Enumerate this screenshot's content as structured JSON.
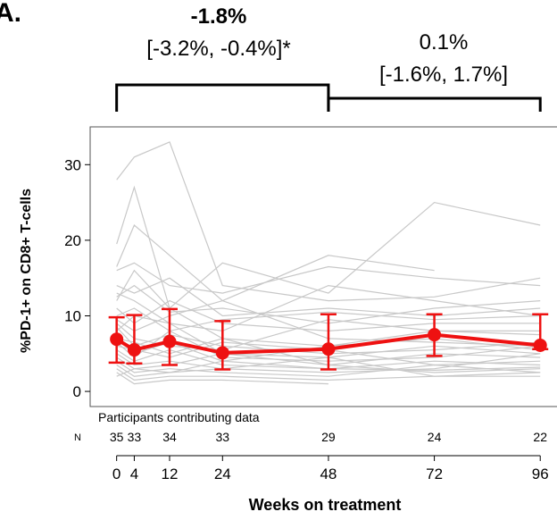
{
  "panel_label": "A.",
  "annotations": {
    "left_bracket": {
      "estimate": "-1.8%",
      "ci": "[-3.2%, -0.4%]*",
      "x_from": 0,
      "x_to": 48
    },
    "right_bracket": {
      "estimate": "0.1%",
      "ci": "[-1.6%, 1.7%]",
      "x_from": 48,
      "x_to": 96
    }
  },
  "n_table": {
    "title": "Participants contributing data",
    "row_label": "N",
    "weeks": [
      0,
      4,
      12,
      24,
      48,
      72,
      96
    ],
    "counts": [
      "35",
      "33",
      "34",
      "33",
      "29",
      "24",
      "22"
    ]
  },
  "chart_data": {
    "type": "line",
    "title": "",
    "xlabel": "Weeks on treatment",
    "ylabel": "%PD-1+ on CD8+ T-cells",
    "xlim": [
      -6,
      100
    ],
    "ylim": [
      -2,
      35
    ],
    "x_ticks": [
      0,
      4,
      12,
      24,
      48,
      72,
      96
    ],
    "x_tick_labels": [
      "0",
      "4",
      "12",
      "24",
      "48",
      "72",
      "96"
    ],
    "y_ticks": [
      0,
      10,
      20,
      30
    ],
    "y_tick_labels": [
      "0",
      "10",
      "20",
      "30"
    ],
    "grid": false,
    "colors": {
      "summary": "#ee1111",
      "individual": "#c8c8c8",
      "frame": "#555555"
    },
    "summary": {
      "x": [
        0,
        4,
        12,
        24,
        48,
        72,
        96
      ],
      "mean": [
        6.9,
        5.5,
        6.6,
        5.1,
        5.6,
        7.5,
        6.1
      ],
      "lower": [
        3.8,
        3.7,
        3.5,
        2.9,
        2.9,
        4.7,
        5.6
      ],
      "upper": [
        9.8,
        10.1,
        10.9,
        9.3,
        10.2,
        10.2,
        10.2
      ]
    },
    "individual_series": [
      {
        "x": [
          0,
          4,
          12,
          24,
          48,
          72,
          96
        ],
        "y": [
          28.0,
          31.0,
          33.0,
          14.0,
          12.0,
          12.5,
          15.0
        ]
      },
      {
        "x": [
          0,
          4,
          12,
          24,
          48,
          72,
          96
        ],
        "y": [
          19.5,
          27.0,
          11.0,
          17.0,
          13.0,
          25.0,
          22.0
        ]
      },
      {
        "x": [
          0,
          4,
          12,
          24,
          48,
          72
        ],
        "y": [
          16.5,
          22.0,
          18.0,
          12.0,
          18.0,
          16.0
        ]
      },
      {
        "x": [
          0,
          4,
          12,
          24,
          48,
          72,
          96
        ],
        "y": [
          16.0,
          17.0,
          14.0,
          13.0,
          16.5,
          15.0,
          14.0
        ]
      },
      {
        "x": [
          0,
          4,
          12,
          24,
          48,
          72,
          96
        ],
        "y": [
          14.0,
          13.0,
          15.0,
          10.0,
          11.0,
          10.0,
          11.0
        ]
      },
      {
        "x": [
          0,
          4,
          12,
          24,
          48,
          96
        ],
        "y": [
          13.0,
          12.0,
          9.0,
          8.0,
          14.0,
          10.0
        ]
      },
      {
        "x": [
          0,
          4,
          12,
          24,
          48,
          72,
          96
        ],
        "y": [
          12.0,
          16.0,
          11.0,
          7.0,
          6.0,
          8.0,
          7.5
        ]
      },
      {
        "x": [
          0,
          4,
          12,
          24,
          48,
          72,
          96
        ],
        "y": [
          11.0,
          9.0,
          12.0,
          9.0,
          8.0,
          9.0,
          9.0
        ]
      },
      {
        "x": [
          0,
          4,
          12,
          24,
          48,
          72,
          96
        ],
        "y": [
          9.5,
          8.0,
          10.0,
          12.0,
          7.0,
          6.5,
          6.0
        ]
      },
      {
        "x": [
          0,
          4,
          12,
          24,
          48,
          72,
          96
        ],
        "y": [
          9.0,
          7.0,
          6.0,
          5.5,
          9.5,
          8.0,
          8.0
        ]
      },
      {
        "x": [
          0,
          4,
          12,
          24,
          48,
          72,
          96
        ],
        "y": [
          8.5,
          6.0,
          7.5,
          6.0,
          5.0,
          5.5,
          6.5
        ]
      },
      {
        "x": [
          0,
          4,
          12,
          24,
          48,
          72,
          96
        ],
        "y": [
          8.0,
          10.0,
          9.0,
          5.0,
          4.5,
          6.0,
          5.0
        ]
      },
      {
        "x": [
          0,
          4,
          12,
          24,
          48,
          72,
          96
        ],
        "y": [
          7.5,
          5.0,
          6.5,
          4.0,
          6.0,
          7.0,
          5.5
        ]
      },
      {
        "x": [
          0,
          4,
          12,
          24,
          48,
          72,
          96
        ],
        "y": [
          7.0,
          6.5,
          5.0,
          7.0,
          3.5,
          5.0,
          4.5
        ]
      },
      {
        "x": [
          0,
          4,
          12,
          24,
          48,
          72,
          96
        ],
        "y": [
          6.5,
          4.5,
          8.0,
          4.5,
          4.0,
          4.5,
          6.0
        ]
      },
      {
        "x": [
          0,
          4,
          12,
          24,
          48,
          72,
          96
        ],
        "y": [
          6.0,
          5.5,
          4.5,
          6.5,
          5.5,
          3.5,
          4.0
        ]
      },
      {
        "x": [
          0,
          4,
          12,
          24,
          48,
          72,
          96
        ],
        "y": [
          5.5,
          4.0,
          5.5,
          3.5,
          3.0,
          4.0,
          3.5
        ]
      },
      {
        "x": [
          0,
          4,
          12,
          24,
          48,
          72,
          96
        ],
        "y": [
          5.0,
          3.5,
          4.0,
          3.0,
          2.5,
          3.0,
          5.0
        ]
      },
      {
        "x": [
          0,
          4,
          12,
          24,
          48,
          72,
          96
        ],
        "y": [
          4.5,
          3.0,
          3.5,
          5.0,
          3.5,
          2.5,
          3.0
        ]
      },
      {
        "x": [
          0,
          4,
          12,
          24,
          48,
          72,
          96
        ],
        "y": [
          4.0,
          2.5,
          3.0,
          2.5,
          2.0,
          3.5,
          2.5
        ]
      },
      {
        "x": [
          0,
          4,
          12,
          24,
          48,
          72,
          96
        ],
        "y": [
          3.5,
          2.0,
          2.5,
          3.0,
          4.5,
          2.0,
          2.0
        ]
      },
      {
        "x": [
          0,
          4,
          12,
          24,
          48,
          96
        ],
        "y": [
          3.0,
          1.5,
          2.0,
          2.0,
          1.5,
          2.5
        ]
      },
      {
        "x": [
          0,
          4,
          12,
          24,
          48
        ],
        "y": [
          2.5,
          1.0,
          1.5,
          1.5,
          1.0
        ]
      },
      {
        "x": [
          0,
          4,
          12,
          24,
          48,
          72,
          96
        ],
        "y": [
          2.0,
          3.0,
          2.5,
          4.0,
          3.0,
          2.8,
          3.2
        ]
      },
      {
        "x": [
          0,
          4,
          12,
          24,
          48,
          72,
          96
        ],
        "y": [
          10.0,
          11.0,
          8.0,
          9.5,
          10.5,
          9.5,
          10.0
        ]
      },
      {
        "x": [
          0,
          4,
          12,
          24,
          48,
          72,
          96
        ],
        "y": [
          12.5,
          14.0,
          10.5,
          11.0,
          9.0,
          11.0,
          12.0
        ]
      }
    ]
  }
}
